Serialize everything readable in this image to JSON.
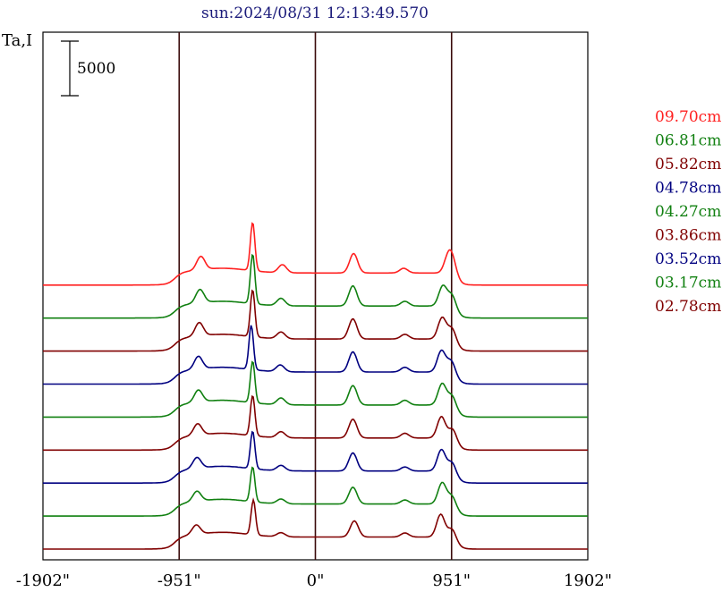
{
  "chart_data": {
    "type": "line",
    "title": "sun:2024/08/31 12:13:49.570",
    "title_color": "#1a1a7a",
    "ylabel": "Ta,I",
    "x_tick_labels": [
      "-1902\"",
      "-951\"",
      "0\"",
      "951\"",
      "1902\""
    ],
    "x_ticks": [
      -1902,
      -951,
      0,
      951,
      1902
    ],
    "xlim": [
      -1902,
      1902
    ],
    "scale_bar_label": "5000",
    "scale_bar_value": 5000,
    "vertical_lines": [
      -951,
      0,
      951
    ],
    "offset_step": 5000,
    "series": [
      {
        "name": "09.70cm",
        "color": "#ff2020",
        "offset": 8,
        "peaks": [
          [
            -800,
            1.0
          ],
          [
            -438,
            3.6
          ],
          [
            -230,
            0.6
          ],
          [
            267,
            1.45
          ],
          [
            617,
            0.35
          ],
          [
            928,
            1.2
          ],
          [
            960,
            1.0
          ]
        ]
      },
      {
        "name": "06.81cm",
        "color": "#118011",
        "offset": 7,
        "peaks": [
          [
            -806,
            1.0
          ],
          [
            -438,
            3.7
          ],
          [
            -240,
            0.55
          ],
          [
            262,
            1.5
          ],
          [
            625,
            0.35
          ],
          [
            890,
            1.5
          ],
          [
            955,
            1.0
          ]
        ]
      },
      {
        "name": "05.82cm",
        "color": "#800000",
        "offset": 6,
        "peaks": [
          [
            -811,
            1.0
          ],
          [
            -438,
            3.5
          ],
          [
            -240,
            0.5
          ],
          [
            262,
            1.5
          ],
          [
            625,
            0.35
          ],
          [
            885,
            1.6
          ],
          [
            955,
            1.0
          ]
        ]
      },
      {
        "name": "04.78cm",
        "color": "#000080",
        "offset": 5,
        "peaks": [
          [
            -817,
            0.95
          ],
          [
            -448,
            3.3
          ],
          [
            -245,
            0.5
          ],
          [
            262,
            1.5
          ],
          [
            625,
            0.35
          ],
          [
            880,
            1.6
          ],
          [
            950,
            1.0
          ]
        ]
      },
      {
        "name": "04.27cm",
        "color": "#118011",
        "offset": 4,
        "peaks": [
          [
            -817,
            0.9
          ],
          [
            -438,
            3.1
          ],
          [
            -240,
            0.5
          ],
          [
            262,
            1.45
          ],
          [
            625,
            0.35
          ],
          [
            885,
            1.6
          ],
          [
            955,
            0.9
          ]
        ]
      },
      {
        "name": "03.86cm",
        "color": "#800000",
        "offset": 3,
        "peaks": [
          [
            -822,
            0.85
          ],
          [
            -438,
            3.0
          ],
          [
            -240,
            0.45
          ],
          [
            262,
            1.4
          ],
          [
            625,
            0.35
          ],
          [
            880,
            1.6
          ],
          [
            960,
            0.9
          ]
        ]
      },
      {
        "name": "03.52cm",
        "color": "#000080",
        "offset": 2,
        "peaks": [
          [
            -827,
            0.8
          ],
          [
            -438,
            2.8
          ],
          [
            -240,
            0.4
          ],
          [
            262,
            1.35
          ],
          [
            625,
            0.3
          ],
          [
            880,
            1.6
          ],
          [
            955,
            0.85
          ]
        ]
      },
      {
        "name": "03.17cm",
        "color": "#118011",
        "offset": 1,
        "peaks": [
          [
            -827,
            0.75
          ],
          [
            -438,
            2.6
          ],
          [
            -240,
            0.35
          ],
          [
            262,
            1.25
          ],
          [
            625,
            0.3
          ],
          [
            885,
            1.6
          ],
          [
            955,
            0.8
          ]
        ]
      },
      {
        "name": "02.78cm",
        "color": "#800000",
        "offset": 0,
        "peaks": [
          [
            -832,
            0.7
          ],
          [
            -433,
            2.6
          ],
          [
            -240,
            0.3
          ],
          [
            272,
            1.2
          ],
          [
            625,
            0.3
          ],
          [
            875,
            1.7
          ],
          [
            955,
            0.8
          ]
        ]
      }
    ]
  }
}
